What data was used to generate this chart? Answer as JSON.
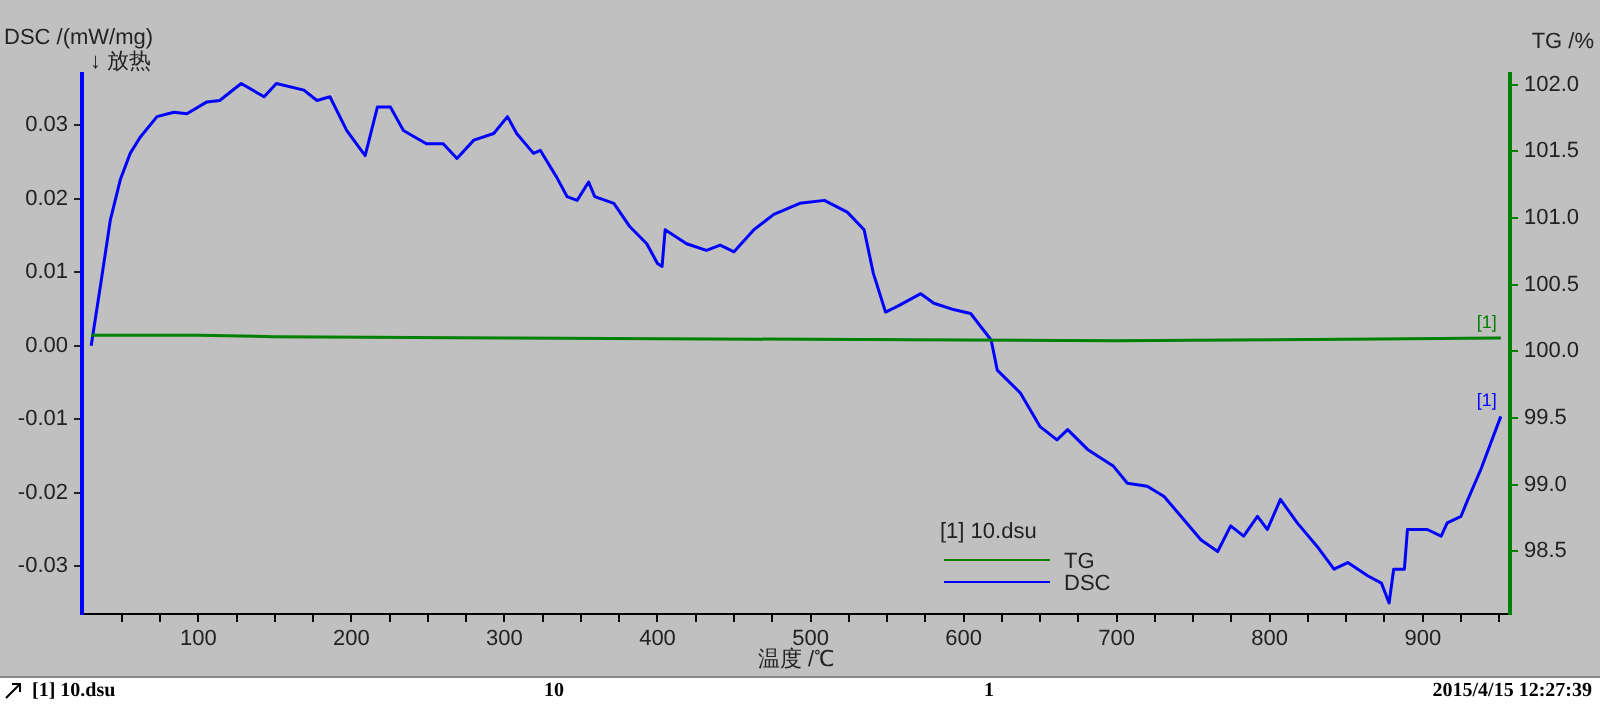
{
  "chart_data": {
    "type": "line",
    "xlabel": "温度 /℃",
    "ylabel": "DSC /(mW/mg)",
    "y2label": "TG /%",
    "legend_title": "[1] 10.dsu",
    "annotations": [
      "↓ 放热",
      "[1]",
      "[1]",
      "[1] 10.dsu",
      "10",
      "1",
      "2015/4/15 12:27:39"
    ],
    "xlim": [
      24,
      957
    ],
    "ylim": [
      -0.0365,
      0.037
    ],
    "y2lim": [
      98.03,
      102.08
    ],
    "xticks": [
      {
        "value": 50,
        "label": null
      },
      {
        "value": 75,
        "label": null
      },
      100,
      {
        "value": 125,
        "label": null
      },
      {
        "value": 150,
        "label": null
      },
      {
        "value": 175,
        "label": null
      },
      200,
      {
        "value": 225,
        "label": null
      },
      {
        "value": 250,
        "label": null
      },
      {
        "value": 275,
        "label": null
      },
      300,
      {
        "value": 325,
        "label": null
      },
      {
        "value": 350,
        "label": null
      },
      {
        "value": 375,
        "label": null
      },
      400,
      {
        "value": 425,
        "label": null
      },
      {
        "value": 450,
        "label": null
      },
      {
        "value": 475,
        "label": null
      },
      500,
      {
        "value": 525,
        "label": null
      },
      {
        "value": 550,
        "label": null
      },
      {
        "value": 575,
        "label": null
      },
      600,
      {
        "value": 625,
        "label": null
      },
      {
        "value": 650,
        "label": null
      },
      {
        "value": 675,
        "label": null
      },
      700,
      {
        "value": 725,
        "label": null
      },
      {
        "value": 750,
        "label": null
      },
      {
        "value": 775,
        "label": null
      },
      800,
      {
        "value": 825,
        "label": null
      },
      {
        "value": 850,
        "label": null
      },
      {
        "value": 875,
        "label": null
      },
      900,
      {
        "value": 925,
        "label": null
      },
      {
        "value": 950,
        "label": null
      }
    ],
    "yticks": [
      {
        "value": -0.03,
        "label": "-0.03"
      },
      {
        "value": -0.02,
        "label": "-0.02"
      },
      {
        "value": -0.01,
        "label": "-0.01"
      },
      {
        "value": 0,
        "label": "0.00"
      },
      0.01,
      0.02,
      0.03
    ],
    "y2ticks": [
      {
        "value": 98.5,
        "label": "98.5"
      },
      {
        "value": 99,
        "label": "99.0"
      },
      99.5,
      {
        "value": 100,
        "label": "100.0"
      },
      100.5,
      {
        "value": 101,
        "label": "101.0"
      },
      101.5,
      {
        "value": 102,
        "label": "102.0"
      }
    ],
    "grid": false,
    "legend": "bottom right",
    "marker": "none",
    "series": [
      {
        "name": "TG",
        "color": "#008000",
        "axis": "y2",
        "x": [
          30,
          100,
          150,
          300,
          500,
          700,
          850,
          951
        ],
        "values": [
          100.12,
          100.12,
          100.11,
          100.1,
          100.09,
          100.08,
          100.09,
          100.1
        ]
      },
      {
        "name": "DSC",
        "color": "#0000ff",
        "x": [
          30,
          36,
          42.5,
          49,
          55.5,
          62,
          73,
          84,
          92.5,
          105.6,
          114,
          128,
          143,
          151,
          169,
          177.5,
          186,
          197,
          209,
          217,
          225.5,
          234,
          249,
          260,
          269,
          280,
          293,
          302,
          308,
          319,
          323.5,
          334,
          341,
          347.5,
          355,
          359,
          371.5,
          382,
          393,
          400,
          403,
          405,
          419,
          432,
          441,
          450,
          463,
          476,
          493,
          509,
          524,
          535,
          541,
          549,
          557,
          572,
          580.6,
          594,
          604.6,
          618,
          622,
          637,
          650,
          661,
          668,
          681,
          698,
          707,
          720,
          731,
          742,
          755,
          766,
          774.5,
          783,
          792,
          798.5,
          807,
          818,
          831,
          842,
          851,
          864,
          873,
          878,
          881,
          888,
          890,
          903,
          912,
          916,
          925,
          929.5,
          938,
          951
        ],
        "values": [
          0.0,
          0.0081,
          0.0171,
          0.0226,
          0.0262,
          0.0284,
          0.0312,
          0.0318,
          0.0316,
          0.0332,
          0.0334,
          0.0357,
          0.0339,
          0.0357,
          0.0348,
          0.0334,
          0.0339,
          0.0293,
          0.0259,
          0.0325,
          0.0325,
          0.0293,
          0.0275,
          0.0275,
          0.0255,
          0.028,
          0.0289,
          0.0312,
          0.0289,
          0.0262,
          0.0266,
          0.023,
          0.0203,
          0.0198,
          0.0223,
          0.0203,
          0.0194,
          0.0162,
          0.0139,
          0.0112,
          0.0108,
          0.0158,
          0.0139,
          0.013,
          0.0137,
          0.0128,
          0.0158,
          0.0179,
          0.0194,
          0.0198,
          0.0182,
          0.0158,
          0.0099,
          0.0046,
          0.0054,
          0.0071,
          0.0058,
          0.0049,
          0.0044,
          0.0008,
          -0.0033,
          -0.0064,
          -0.011,
          -0.0128,
          -0.0114,
          -0.0141,
          -0.0164,
          -0.0187,
          -0.0191,
          -0.0205,
          -0.0232,
          -0.0264,
          -0.028,
          -0.0245,
          -0.0259,
          -0.0232,
          -0.025,
          -0.0209,
          -0.0241,
          -0.0273,
          -0.0304,
          -0.0295,
          -0.0313,
          -0.0323,
          -0.035,
          -0.0304,
          -0.0304,
          -0.025,
          -0.025,
          -0.0259,
          -0.0241,
          -0.0232,
          -0.0209,
          -0.0168,
          -0.0096
        ]
      }
    ]
  }
}
